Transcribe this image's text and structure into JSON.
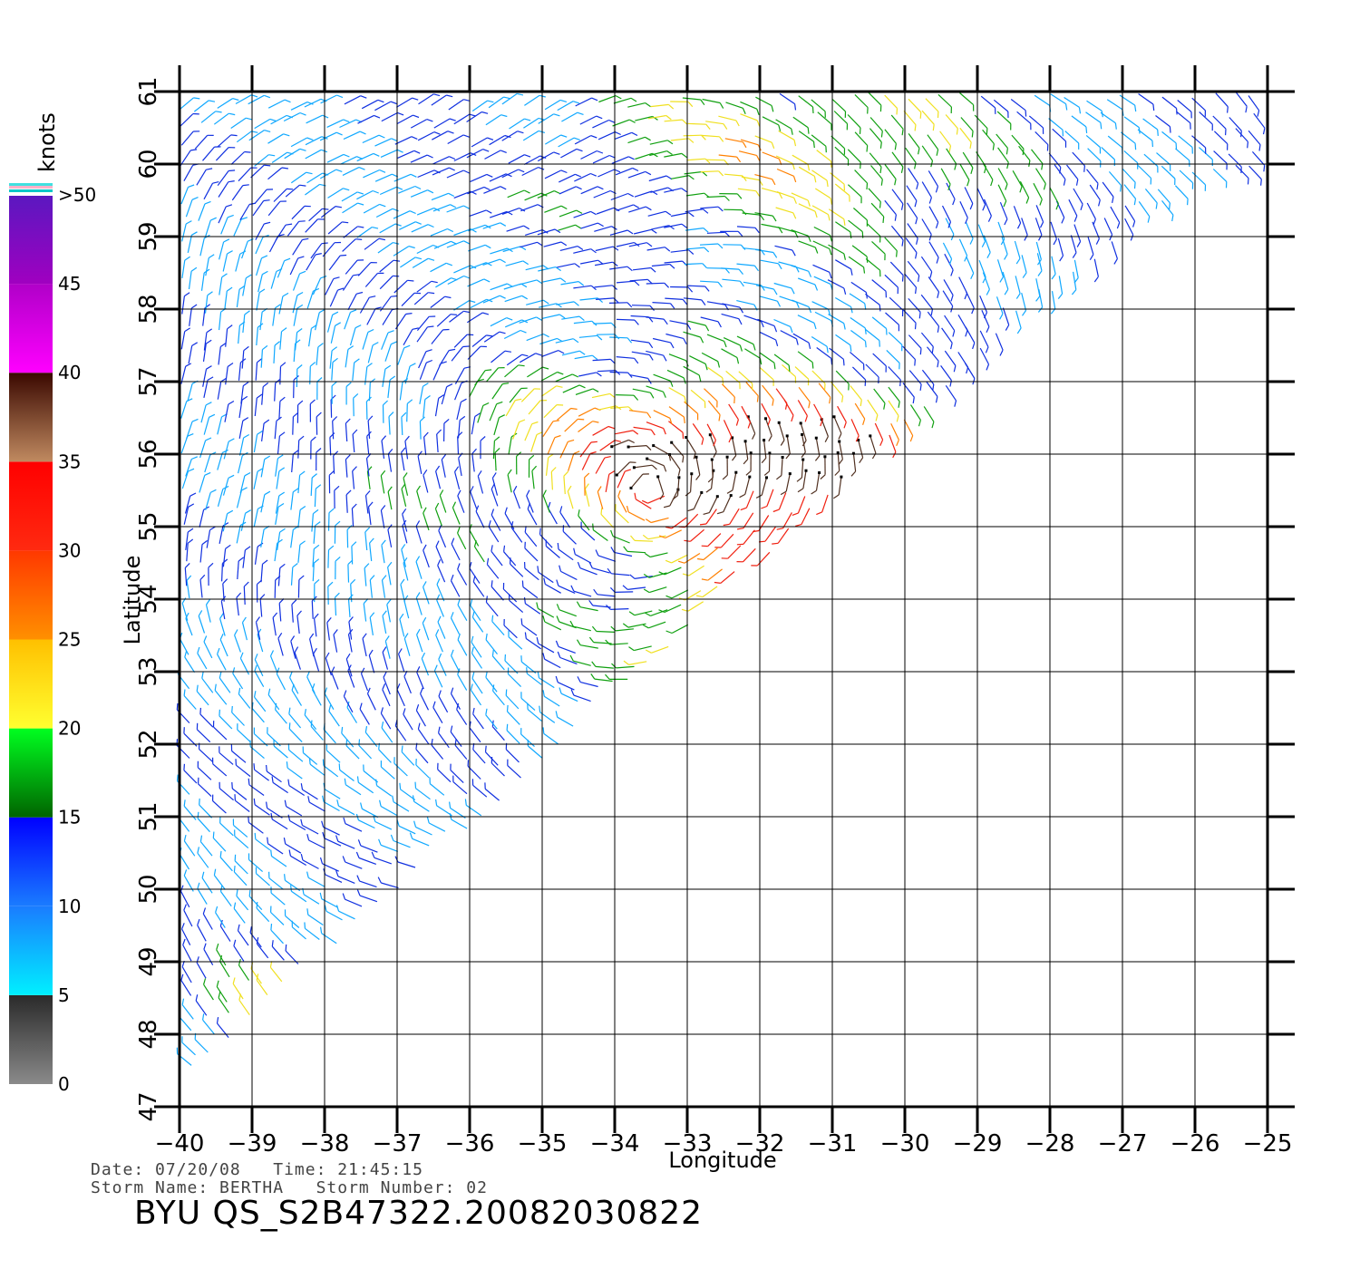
{
  "colors": {
    "scale": [
      "#808080",
      "#303030",
      "#00e8ff",
      "#1080ff",
      "#0000ff",
      "#008000",
      "#00ff00",
      "#ffff20",
      "#ffc000",
      "#ff8000",
      "#ff3000",
      "#ff1010",
      "#c08060",
      "#3a1000",
      "#ff00ff",
      "#a000c0",
      "#6010c0"
    ],
    "gridline": "#000000",
    "background": "#ffffff"
  },
  "colorbar": {
    "unit_label": "knots",
    "tick_labels": [
      "0",
      "5",
      "10",
      "15",
      "20",
      "25",
      "30",
      "35",
      "40",
      "45",
      ">50"
    ],
    "tick_values": [
      0,
      5,
      10,
      15,
      20,
      25,
      30,
      35,
      40,
      45,
      50
    ]
  },
  "map": {
    "xlabel": "Longitude",
    "ylabel": "Latitude",
    "lon_range": [
      -40,
      -25
    ],
    "lat_range": [
      47,
      61
    ],
    "lon_ticks": [
      "−40",
      "−39",
      "−38",
      "−37",
      "−36",
      "−35",
      "−34",
      "−33",
      "−32",
      "−31",
      "−30",
      "−29",
      "−28",
      "−27",
      "−26",
      "−25"
    ],
    "lon_tick_values": [
      -40,
      -39,
      -38,
      -37,
      -36,
      -35,
      -34,
      -33,
      -32,
      -31,
      -30,
      -29,
      -28,
      -27,
      -26,
      -25
    ],
    "lat_ticks": [
      "47",
      "48",
      "49",
      "50",
      "51",
      "52",
      "53",
      "54",
      "55",
      "56",
      "57",
      "58",
      "59",
      "60",
      "61"
    ],
    "lat_tick_values": [
      47,
      48,
      49,
      50,
      51,
      52,
      53,
      54,
      55,
      56,
      57,
      58,
      59,
      60,
      61
    ]
  },
  "footer": {
    "line1": "Date: 07/20/08   Time: 21:45:15",
    "line2": "Storm Name: BERTHA   Storm Number: 02",
    "title": "BYU QS_S2B47322.20082030822"
  }
}
